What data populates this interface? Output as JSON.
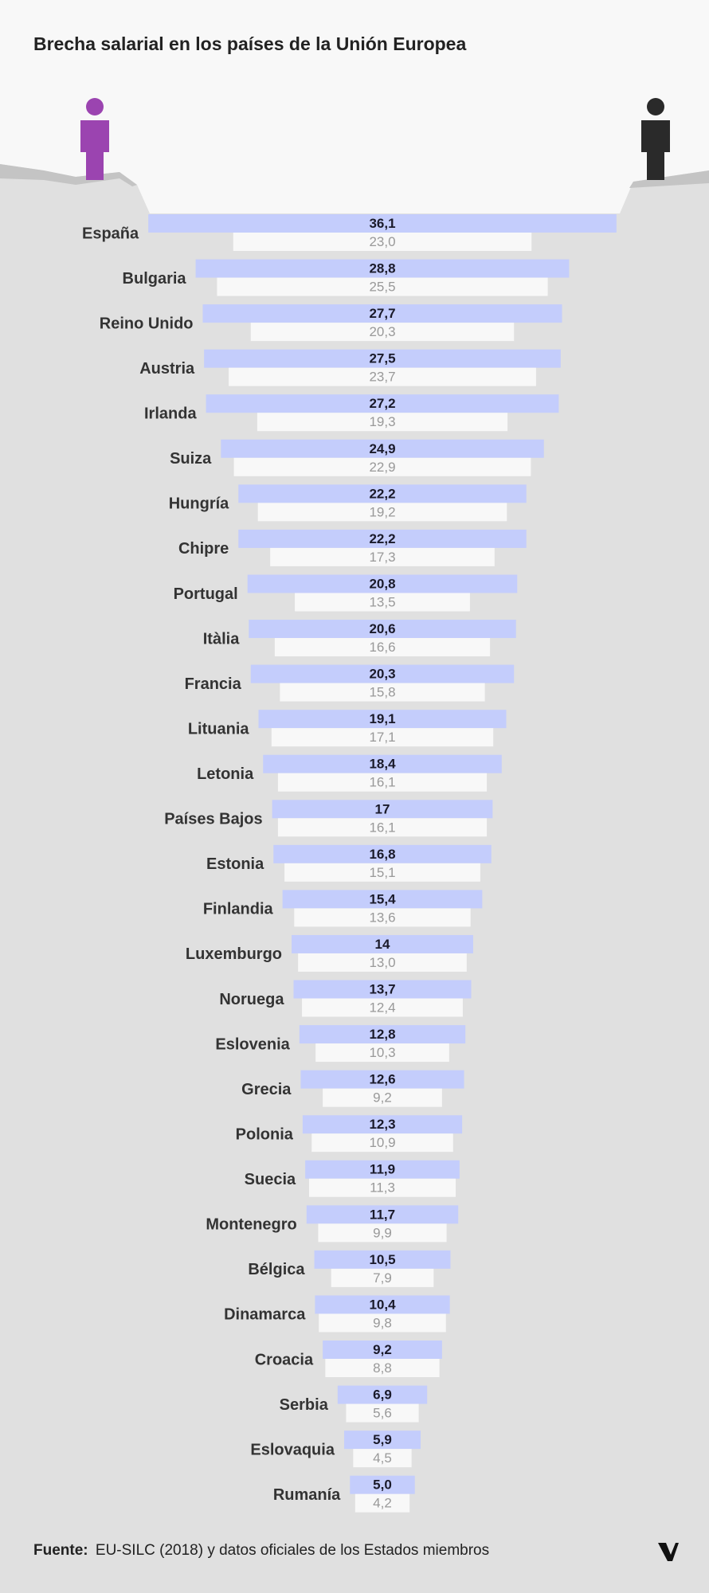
{
  "chart_data": {
    "type": "bar",
    "title": "Brecha salarial en los países de la Unión Europea",
    "categories": [
      "España",
      "Bulgaria",
      "Reino Unido",
      "Austria",
      "Irlanda",
      "Suiza",
      "Hungría",
      "Chipre",
      "Portugal",
      "Itàlia",
      "Francia",
      "Lituania",
      "Letonia",
      "Países Bajos",
      "Estonia",
      "Finlandia",
      "Luxemburgo",
      "Noruega",
      "Eslovenia",
      "Grecia",
      "Polonia",
      "Suecia",
      "Montenegro",
      "Bélgica",
      "Dinamarca",
      "Croacia",
      "Serbia",
      "Eslovaquia",
      "Rumanía"
    ],
    "series": [
      {
        "color": "#c4cdfc",
        "values": [
          36.1,
          28.8,
          27.7,
          27.5,
          27.2,
          24.9,
          22.2,
          22.2,
          20.8,
          20.6,
          20.3,
          19.1,
          18.4,
          17,
          16.8,
          15.4,
          14,
          13.7,
          12.8,
          12.6,
          12.3,
          11.9,
          11.7,
          10.5,
          10.4,
          9.2,
          6.9,
          5.9,
          5.0
        ],
        "value_labels": [
          "36,1",
          "28,8",
          "27,7",
          "27,5",
          "27,2",
          "24,9",
          "22,2",
          "22,2",
          "20,8",
          "20,6",
          "20,3",
          "19,1",
          "18,4",
          "17",
          "16,8",
          "15,4",
          "14",
          "13,7",
          "12,8",
          "12,6",
          "12,3",
          "11,9",
          "11,7",
          "10,5",
          "10,4",
          "9,2",
          "6,9",
          "5,9",
          "5,0"
        ]
      },
      {
        "color": "#f8f8f8",
        "values": [
          23.0,
          25.5,
          20.3,
          23.7,
          19.3,
          22.9,
          19.2,
          17.3,
          13.5,
          16.6,
          15.8,
          17.1,
          16.1,
          16.1,
          15.1,
          13.6,
          13.0,
          12.4,
          10.3,
          9.2,
          10.9,
          11.3,
          9.9,
          7.9,
          9.8,
          8.8,
          5.6,
          4.5,
          4.2
        ],
        "value_labels": [
          "23,0",
          "25,5",
          "20,3",
          "23,7",
          "19,3",
          "22,9",
          "19,2",
          "17,3",
          "13,5",
          "16,6",
          "15,8",
          "17,1",
          "16,1",
          "16,1",
          "15,1",
          "13,6",
          "13,0",
          "12,4",
          "10,3",
          "9,2",
          "10,9",
          "11,3",
          "9,9",
          "7,9",
          "9,8",
          "8,8",
          "5,6",
          "4,5",
          "4,2"
        ]
      }
    ],
    "source_label": "Fuente:",
    "source": "EU-SILC (2018) y datos oficiales de los Estados miembros"
  }
}
